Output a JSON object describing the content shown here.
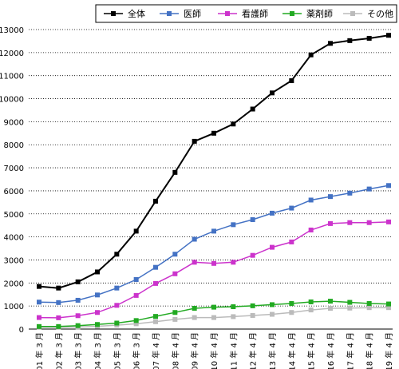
{
  "chart_data": {
    "type": "line",
    "title": "",
    "xlabel": "",
    "ylabel": "",
    "ylim": [
      0,
      13000
    ],
    "yticks": [
      0,
      1000,
      2000,
      3000,
      4000,
      5000,
      6000,
      7000,
      8000,
      9000,
      10000,
      11000,
      12000,
      13000
    ],
    "grid": "horizontal-dotted",
    "legend_position": "top-right",
    "categories": [
      "'01 年 3 月",
      "'02 年 3 月",
      "'03 年 3 月",
      "'04 年 3 月",
      "'05 年 3 月",
      "'06 年 3 月",
      "'07 年 4 月",
      "'08 年 4 月",
      "'09 年 4 月",
      "'10 年 4 月",
      "'11 年 4 月",
      "'12 年 4 月",
      "'13 年 4 月",
      "'14 年 4 月",
      "'15 年 4 月",
      "'16 年 4 月",
      "'17 年 4 月",
      "'18 年 4 月",
      "'19 年 4 月"
    ],
    "series": [
      {
        "name": "全体",
        "color": "#000000",
        "values": [
          1850,
          1780,
          2050,
          2480,
          3250,
          4250,
          5550,
          6800,
          8150,
          8500,
          8900,
          9550,
          10250,
          10780,
          11900,
          12400,
          12520,
          12620,
          12750
        ]
      },
      {
        "name": "医師",
        "color": "#4472c4",
        "values": [
          1170,
          1150,
          1250,
          1480,
          1780,
          2150,
          2680,
          3250,
          3900,
          4250,
          4530,
          4750,
          5030,
          5250,
          5600,
          5750,
          5900,
          6080,
          6230
        ]
      },
      {
        "name": "看護師",
        "color": "#cc33cc",
        "values": [
          500,
          490,
          580,
          720,
          1030,
          1460,
          1980,
          2400,
          2900,
          2850,
          2900,
          3200,
          3550,
          3780,
          4300,
          4580,
          4620,
          4620,
          4650
        ]
      },
      {
        "name": "薬剤師",
        "color": "#22aa22",
        "values": [
          110,
          110,
          150,
          200,
          260,
          370,
          550,
          720,
          900,
          950,
          970,
          1010,
          1060,
          1110,
          1180,
          1210,
          1160,
          1110,
          1090
        ]
      },
      {
        "name": "その他",
        "color": "#bbbbbb",
        "values": [
          80,
          80,
          90,
          120,
          170,
          230,
          320,
          420,
          500,
          500,
          540,
          590,
          640,
          720,
          830,
          900,
          910,
          930,
          930
        ]
      }
    ]
  }
}
